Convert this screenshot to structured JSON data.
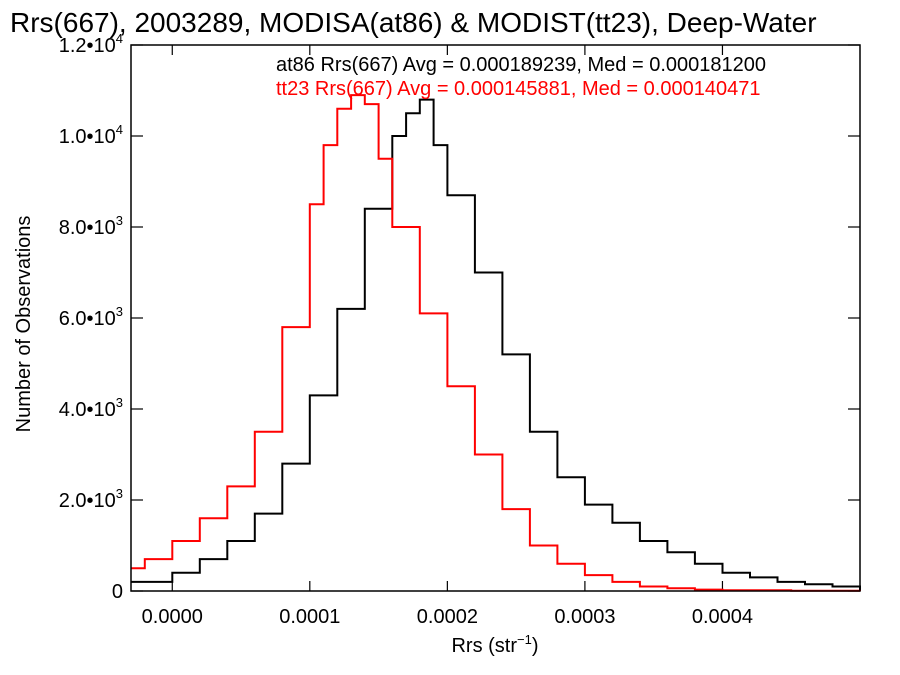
{
  "chart_data": {
    "type": "histogram",
    "title": "Rrs(667), 2003289, MODISA(at86) & MODIST(tt23), Deep-Water",
    "xlabel": "Rrs (str",
    "xlabel_sup": "−1",
    "xlabel_close": ")",
    "ylabel": "Number of Observations",
    "xlim": [
      -3e-05,
      0.0005
    ],
    "ylim": [
      0,
      12000
    ],
    "x_tick_values": [
      0.0,
      0.0001,
      0.0002,
      0.0003,
      0.0004
    ],
    "x_tick_labels": [
      "0.0000",
      "0.0001",
      "0.0002",
      "0.0003",
      "0.0004"
    ],
    "y_tick_values": [
      0,
      2000,
      4000,
      6000,
      8000,
      10000,
      12000
    ],
    "y_tick_labels": [
      {
        "mant": "0",
        "exp": ""
      },
      {
        "mant": "2.0•10",
        "exp": "3"
      },
      {
        "mant": "4.0•10",
        "exp": "3"
      },
      {
        "mant": "6.0•10",
        "exp": "3"
      },
      {
        "mant": "8.0•10",
        "exp": "3"
      },
      {
        "mant": "1.0•10",
        "exp": "4"
      },
      {
        "mant": "1.2•10",
        "exp": "4"
      }
    ],
    "grid": false,
    "legend_position": "top-right",
    "series": [
      {
        "name": "at86",
        "label": "at86 Rrs(667) Avg = 0.000189239, Med = 0.000181200",
        "color": "#000000",
        "x": [
          -3e-05,
          0.0,
          2e-05,
          4e-05,
          6e-05,
          8e-05,
          0.0001,
          0.00012,
          0.00014,
          0.00016,
          0.00017,
          0.00018,
          0.00019,
          0.0002,
          0.00022,
          0.00024,
          0.00026,
          0.00028,
          0.0003,
          0.00032,
          0.00034,
          0.00036,
          0.00038,
          0.0004,
          0.00042,
          0.00044,
          0.00046,
          0.00048,
          0.0005
        ],
        "y": [
          200,
          400,
          700,
          1100,
          1700,
          2800,
          4300,
          6200,
          8400,
          10000,
          10500,
          10800,
          9800,
          8700,
          7000,
          5200,
          3500,
          2500,
          1900,
          1500,
          1100,
          850,
          600,
          400,
          300,
          200,
          150,
          100,
          0
        ]
      },
      {
        "name": "tt23",
        "label": "tt23 Rrs(667) Avg = 0.000145881, Med = 0.000140471",
        "color": "#ff0000",
        "x": [
          -3e-05,
          -2e-05,
          0.0,
          2e-05,
          4e-05,
          6e-05,
          8e-05,
          0.0001,
          0.00011,
          0.00012,
          0.00013,
          0.00014,
          0.00015,
          0.00016,
          0.00018,
          0.0002,
          0.00022,
          0.00024,
          0.00026,
          0.00028,
          0.0003,
          0.00032,
          0.00034,
          0.00036,
          0.00038,
          0.0004,
          0.00045,
          0.0005
        ],
        "y": [
          500,
          700,
          1100,
          1600,
          2300,
          3500,
          5800,
          8500,
          9800,
          10600,
          10900,
          10700,
          9500,
          8000,
          6100,
          4500,
          3000,
          1800,
          1000,
          600,
          350,
          200,
          100,
          60,
          30,
          15,
          5,
          0
        ]
      }
    ]
  }
}
